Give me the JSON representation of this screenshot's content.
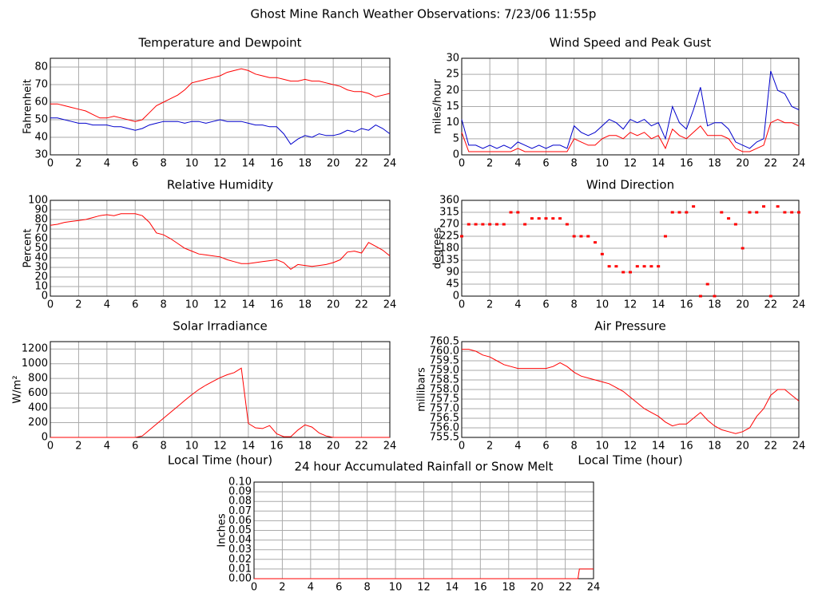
{
  "title": "Ghost Mine Ranch Weather Observations: 7/23/06 11:55p",
  "chart_data": [
    {
      "type": "line",
      "title": "Temperature and Dewpoint",
      "ylabel": "Fahrenheit",
      "x": [
        0,
        0.5,
        1,
        1.5,
        2,
        2.5,
        3,
        3.5,
        4,
        4.5,
        5,
        5.5,
        6,
        6.5,
        7,
        7.5,
        8,
        8.5,
        9,
        9.5,
        10,
        10.5,
        11,
        11.5,
        12,
        12.5,
        13,
        13.5,
        14,
        14.5,
        15,
        15.5,
        16,
        16.5,
        17,
        17.5,
        18,
        18.5,
        19,
        19.5,
        20,
        20.5,
        21,
        21.5,
        22,
        22.5,
        23,
        23.5,
        24
      ],
      "series": [
        {
          "color": "#ff0000",
          "values": [
            59,
            59,
            58,
            57,
            56,
            55,
            53,
            51,
            51,
            52,
            51,
            50,
            49,
            50,
            54,
            58,
            60,
            62,
            64,
            67,
            71,
            72,
            73,
            74,
            75,
            77,
            78,
            79,
            78,
            76,
            75,
            74,
            74,
            73,
            72,
            72,
            73,
            72,
            72,
            71,
            70,
            69,
            67,
            66,
            66,
            65,
            63,
            64,
            65
          ]
        },
        {
          "color": "#0000cc",
          "values": [
            51,
            51,
            50,
            49,
            48,
            48,
            47,
            47,
            47,
            46,
            46,
            45,
            44,
            45,
            47,
            48,
            49,
            49,
            49,
            48,
            49,
            49,
            48,
            49,
            50,
            49,
            49,
            49,
            48,
            47,
            47,
            46,
            46,
            42,
            36,
            39,
            41,
            40,
            42,
            41,
            41,
            42,
            44,
            43,
            45,
            44,
            47,
            45,
            42
          ]
        }
      ],
      "xlim": [
        0,
        24
      ],
      "ylim": [
        30,
        85
      ],
      "xticks": [
        0,
        2,
        4,
        6,
        8,
        10,
        12,
        14,
        16,
        18,
        20,
        22,
        24
      ],
      "yticks": [
        30,
        40,
        50,
        60,
        70,
        80
      ],
      "grid": true
    },
    {
      "type": "line",
      "title": "Wind Speed and Peak Gust",
      "ylabel": "miles/hour",
      "x": [
        0,
        0.5,
        1,
        1.5,
        2,
        2.5,
        3,
        3.5,
        4,
        4.5,
        5,
        5.5,
        6,
        6.5,
        7,
        7.5,
        8,
        8.5,
        9,
        9.5,
        10,
        10.5,
        11,
        11.5,
        12,
        12.5,
        13,
        13.5,
        14,
        14.5,
        15,
        15.5,
        16,
        16.5,
        17,
        17.5,
        18,
        18.5,
        19,
        19.5,
        20,
        20.5,
        21,
        21.5,
        22,
        22.5,
        23,
        23.5,
        24
      ],
      "series": [
        {
          "color": "#0000cc",
          "values": [
            11,
            3,
            3,
            2,
            3,
            2,
            3,
            2,
            4,
            3,
            2,
            3,
            2,
            3,
            3,
            2,
            9,
            7,
            6,
            7,
            9,
            11,
            10,
            8,
            11,
            10,
            11,
            9,
            10,
            5,
            15,
            10,
            8,
            14,
            21,
            9,
            10,
            10,
            8,
            4,
            3,
            2,
            4,
            5,
            26,
            20,
            19,
            15,
            14
          ]
        },
        {
          "color": "#ff0000",
          "values": [
            7,
            1,
            1,
            1,
            1,
            1,
            1,
            1,
            2,
            1,
            1,
            1,
            1,
            1,
            1,
            1,
            5,
            4,
            3,
            3,
            5,
            6,
            6,
            5,
            7,
            6,
            7,
            5,
            6,
            2,
            8,
            6,
            5,
            7,
            9,
            6,
            6,
            6,
            5,
            2,
            1,
            1,
            2,
            3,
            10,
            11,
            10,
            10,
            9
          ]
        }
      ],
      "xlim": [
        0,
        24
      ],
      "ylim": [
        0,
        30
      ],
      "xticks": [
        0,
        2,
        4,
        6,
        8,
        10,
        12,
        14,
        16,
        18,
        20,
        22,
        24
      ],
      "yticks": [
        0,
        5,
        10,
        15,
        20,
        25,
        30
      ],
      "grid": true
    },
    {
      "type": "line",
      "title": "Relative Humidity",
      "ylabel": "Percent",
      "x": [
        0,
        0.5,
        1,
        1.5,
        2,
        2.5,
        3,
        3.5,
        4,
        4.5,
        5,
        5.5,
        6,
        6.5,
        7,
        7.5,
        8,
        8.5,
        9,
        9.5,
        10,
        10.5,
        11,
        11.5,
        12,
        12.5,
        13,
        13.5,
        14,
        14.5,
        15,
        15.5,
        16,
        16.5,
        17,
        17.5,
        18,
        18.5,
        19,
        19.5,
        20,
        20.5,
        21,
        21.5,
        22,
        22.5,
        23,
        23.5,
        24
      ],
      "series": [
        {
          "color": "#ff0000",
          "values": [
            74,
            75,
            77,
            78,
            79,
            80,
            82,
            84,
            85,
            84,
            86,
            86,
            86,
            84,
            77,
            66,
            64,
            60,
            55,
            50,
            47,
            44,
            43,
            42,
            41,
            38,
            36,
            34,
            34,
            35,
            36,
            37,
            38,
            35,
            28,
            33,
            32,
            31,
            32,
            33,
            35,
            38,
            46,
            47,
            45,
            56,
            52,
            48,
            42
          ]
        }
      ],
      "xlim": [
        0,
        24
      ],
      "ylim": [
        0,
        100
      ],
      "xticks": [
        0,
        2,
        4,
        6,
        8,
        10,
        12,
        14,
        16,
        18,
        20,
        22,
        24
      ],
      "yticks": [
        0,
        10,
        20,
        30,
        40,
        50,
        60,
        70,
        80,
        90,
        100
      ],
      "grid": true
    },
    {
      "type": "scatter",
      "title": "Wind Direction",
      "ylabel": "degrees",
      "x": [
        0,
        0.5,
        1,
        1.5,
        2,
        2.5,
        3,
        3.5,
        4,
        4.5,
        5,
        5.5,
        6,
        6.5,
        7,
        7.5,
        8,
        8.5,
        9,
        9.5,
        10,
        10.5,
        11,
        11.5,
        12,
        12.5,
        13,
        13.5,
        14,
        14.5,
        15,
        15.5,
        16,
        16.5,
        17,
        17.5,
        18,
        18.5,
        19,
        19.5,
        20,
        20.5,
        21,
        21.5,
        22,
        22.5,
        23,
        23.5,
        24
      ],
      "series": [
        {
          "color": "#ff0000",
          "values": [
            225,
            270,
            270,
            270,
            270,
            270,
            270,
            315,
            315,
            270,
            292,
            292,
            292,
            292,
            292,
            270,
            225,
            225,
            225,
            202,
            158,
            112,
            112,
            90,
            90,
            112,
            112,
            112,
            112,
            225,
            315,
            315,
            315,
            337,
            0,
            45,
            0,
            315,
            292,
            270,
            180,
            315,
            315,
            337,
            0,
            337,
            315,
            315,
            315
          ]
        }
      ],
      "xlim": [
        0,
        24
      ],
      "ylim": [
        0,
        360
      ],
      "xticks": [
        0,
        2,
        4,
        6,
        8,
        10,
        12,
        14,
        16,
        18,
        20,
        22,
        24
      ],
      "yticks": [
        0,
        45,
        90,
        135,
        180,
        225,
        270,
        315,
        360
      ],
      "grid": true
    },
    {
      "type": "line",
      "title": "Solar Irradiance",
      "ylabel": "W/m²",
      "xlabel": "Local Time (hour)",
      "x": [
        0,
        0.5,
        1,
        1.5,
        2,
        2.5,
        3,
        3.5,
        4,
        4.5,
        5,
        5.5,
        6,
        6.5,
        7,
        7.5,
        8,
        8.5,
        9,
        9.5,
        10,
        10.5,
        11,
        11.5,
        12,
        12.5,
        13,
        13.5,
        14,
        14.5,
        15,
        15.5,
        16,
        16.5,
        17,
        17.5,
        18,
        18.5,
        19,
        19.5,
        20,
        20.5,
        21,
        21.5,
        22,
        22.5,
        23,
        23.5,
        24
      ],
      "series": [
        {
          "color": "#ff0000",
          "values": [
            0,
            0,
            0,
            0,
            0,
            0,
            0,
            0,
            0,
            0,
            0,
            0,
            0,
            20,
            100,
            180,
            260,
            340,
            420,
            500,
            580,
            650,
            710,
            760,
            810,
            850,
            880,
            940,
            190,
            130,
            120,
            160,
            50,
            10,
            10,
            100,
            170,
            140,
            60,
            20,
            0,
            0,
            0,
            0,
            0,
            0,
            0,
            0,
            0
          ]
        }
      ],
      "xlim": [
        0,
        24
      ],
      "ylim": [
        0,
        1300
      ],
      "xticks": [
        0,
        2,
        4,
        6,
        8,
        10,
        12,
        14,
        16,
        18,
        20,
        22,
        24
      ],
      "yticks": [
        0,
        200,
        400,
        600,
        800,
        1000,
        1200
      ],
      "grid": true
    },
    {
      "type": "line",
      "title": "Air Pressure",
      "ylabel": "millibars",
      "xlabel": "Local Time (hour)",
      "x": [
        0,
        0.5,
        1,
        1.5,
        2,
        2.5,
        3,
        3.5,
        4,
        4.5,
        5,
        5.5,
        6,
        6.5,
        7,
        7.5,
        8,
        8.5,
        9,
        9.5,
        10,
        10.5,
        11,
        11.5,
        12,
        12.5,
        13,
        13.5,
        14,
        14.5,
        15,
        15.5,
        16,
        16.5,
        17,
        17.5,
        18,
        18.5,
        19,
        19.5,
        20,
        20.5,
        21,
        21.5,
        22,
        22.5,
        23,
        23.5,
        24
      ],
      "series": [
        {
          "color": "#ff0000",
          "values": [
            760.1,
            760.1,
            760.0,
            759.8,
            759.7,
            759.5,
            759.3,
            759.2,
            759.1,
            759.1,
            759.1,
            759.1,
            759.1,
            759.2,
            759.4,
            759.2,
            758.9,
            758.7,
            758.6,
            758.5,
            758.4,
            758.3,
            758.1,
            757.9,
            757.6,
            757.3,
            757.0,
            756.8,
            756.6,
            756.3,
            756.1,
            756.2,
            756.2,
            756.5,
            756.8,
            756.4,
            756.1,
            755.9,
            755.8,
            755.7,
            755.8,
            756.0,
            756.6,
            757.0,
            757.7,
            758.0,
            758.0,
            757.7,
            757.4
          ]
        }
      ],
      "xlim": [
        0,
        24
      ],
      "ylim": [
        755.5,
        760.5
      ],
      "xticks": [
        0,
        2,
        4,
        6,
        8,
        10,
        12,
        14,
        16,
        18,
        20,
        22,
        24
      ],
      "yticks": [
        755.5,
        {
          "value": 756,
          "label": "756.0"
        },
        756.5,
        {
          "value": 757,
          "label": "757.0"
        },
        757.5,
        {
          "value": 758,
          "label": "758.0"
        },
        758.5,
        {
          "value": 759,
          "label": "759.0"
        },
        759.5,
        {
          "value": 760,
          "label": "760.0"
        },
        760.5
      ],
      "grid": true
    },
    {
      "type": "line",
      "title": "24 hour Accumulated Rainfall or Snow Melt",
      "ylabel": "Inches",
      "x": [
        0,
        22.9,
        23,
        24
      ],
      "series": [
        {
          "color": "#ff0000",
          "values": [
            0,
            0,
            0.01,
            0.01
          ]
        }
      ],
      "xlim": [
        0,
        24
      ],
      "ylim": [
        0,
        0.1
      ],
      "xticks": [
        0,
        2,
        4,
        6,
        8,
        10,
        12,
        14,
        16,
        18,
        20,
        22,
        24
      ],
      "yticks": [
        {
          "value": 0,
          "label": "0.00"
        },
        0.01,
        0.02,
        0.03,
        0.04,
        0.05,
        0.06,
        0.07,
        0.08,
        0.09,
        {
          "value": 0.1,
          "label": "0.10"
        }
      ],
      "grid": true
    }
  ]
}
